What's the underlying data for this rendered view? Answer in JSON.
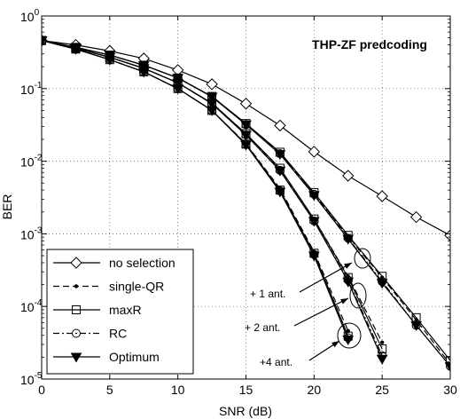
{
  "chart_data": {
    "type": "line",
    "title": "THP-ZF predcoding",
    "xlabel": "SNR (dB)",
    "ylabel": "BER",
    "xlim": [
      0,
      30
    ],
    "ylim": [
      1e-05,
      1
    ],
    "yscale": "log",
    "grid": true,
    "legend_position": "bottom-left",
    "xticks": [
      "0",
      "5",
      "10",
      "15",
      "20",
      "25",
      "30"
    ],
    "yticks": [
      {
        "value": 1,
        "exp": "0"
      },
      {
        "value": 0.1,
        "exp": "-1"
      },
      {
        "value": 0.01,
        "exp": "-2"
      },
      {
        "value": 0.001,
        "exp": "-3"
      },
      {
        "value": 0.0001,
        "exp": "-4"
      },
      {
        "value": 1e-05,
        "exp": "-5"
      }
    ],
    "ytick_base": "10",
    "legend": [
      "no selection",
      "single-QR",
      "maxR",
      "RC",
      "Optimum"
    ],
    "annotations": [
      "+ 1 ant.",
      "+ 2 ant.",
      "+4 ant."
    ],
    "groups": [
      {
        "label": "no selection",
        "curves": [
          {
            "marker": "diamond",
            "dash": "solid",
            "x": [
              0,
              2.5,
              5,
              7.5,
              10,
              12.5,
              15,
              17.5,
              20,
              22.5,
              25,
              27.5,
              30
            ],
            "y": [
              0.46,
              0.4,
              0.33,
              0.26,
              0.18,
              0.115,
              0.062,
              0.031,
              0.0135,
              0.0063,
              0.0033,
              0.0017,
              0.00095
            ]
          }
        ]
      },
      {
        "label": "+ 1 ant.",
        "curves": [
          {
            "marker": "dot",
            "dash": "dashed",
            "x": [
              0,
              2.5,
              5,
              7.5,
              10,
              12.5,
              15,
              17.5,
              20,
              22.5,
              25,
              27.5,
              30
            ],
            "y": [
              0.46,
              0.37,
              0.29,
              0.21,
              0.14,
              0.078,
              0.033,
              0.0132,
              0.0036,
              0.00092,
              0.00025,
              6.5e-05,
              1.6e-05
            ]
          },
          {
            "marker": "square",
            "dash": "solid",
            "x": [
              0,
              2.5,
              5,
              7.5,
              10,
              12.5,
              15,
              17.5,
              20,
              22.5,
              25,
              27.5,
              30
            ],
            "y": [
              0.46,
              0.37,
              0.29,
              0.21,
              0.14,
              0.078,
              0.033,
              0.0133,
              0.0037,
              0.00095,
              0.00026,
              7e-05,
              1.8e-05
            ]
          },
          {
            "marker": "circle",
            "dash": "dashdot",
            "x": [
              0,
              2.5,
              5,
              7.5,
              10,
              12.5,
              15,
              17.5,
              20,
              22.5,
              25,
              27.5,
              30
            ],
            "y": [
              0.46,
              0.37,
              0.29,
              0.21,
              0.14,
              0.078,
              0.032,
              0.0127,
              0.0035,
              0.00087,
              0.00022,
              5.5e-05,
              1.5e-05
            ]
          },
          {
            "marker": "triangle",
            "dash": "solid",
            "x": [
              0,
              2.5,
              5,
              7.5,
              10,
              12.5,
              15,
              17.5,
              20,
              22.5,
              25,
              27.5,
              30
            ],
            "y": [
              0.46,
              0.37,
              0.29,
              0.21,
              0.14,
              0.077,
              0.032,
              0.0125,
              0.0034,
              0.00085,
              0.00021,
              5.5e-05,
              1.5e-05
            ]
          }
        ]
      },
      {
        "label": "+ 2 ant.",
        "curves": [
          {
            "marker": "dot",
            "dash": "dashed",
            "x": [
              0,
              2.5,
              5,
              7.5,
              10,
              12.5,
              15,
              17.5,
              20,
              22.5,
              25
            ],
            "y": [
              0.46,
              0.36,
              0.27,
              0.19,
              0.12,
              0.063,
              0.024,
              0.0079,
              0.0016,
              0.00026,
              3.2e-05
            ]
          },
          {
            "marker": "square",
            "dash": "solid",
            "x": [
              0,
              2.5,
              5,
              7.5,
              10,
              12.5,
              15,
              17.5,
              20,
              22.5,
              25
            ],
            "y": [
              0.46,
              0.36,
              0.27,
              0.19,
              0.12,
              0.063,
              0.024,
              0.008,
              0.0016,
              0.00025,
              2.6e-05
            ]
          },
          {
            "marker": "circle",
            "dash": "dashdot",
            "x": [
              0,
              2.5,
              5,
              7.5,
              10,
              12.5,
              15,
              17.5,
              20,
              22.5,
              25
            ],
            "y": [
              0.46,
              0.36,
              0.27,
              0.19,
              0.12,
              0.062,
              0.023,
              0.0075,
              0.0015,
              0.00023,
              2.1e-05
            ]
          },
          {
            "marker": "triangle",
            "dash": "solid",
            "x": [
              0,
              2.5,
              5,
              7.5,
              10,
              12.5,
              15,
              17.5,
              20,
              22.5,
              25
            ],
            "y": [
              0.46,
              0.36,
              0.27,
              0.19,
              0.12,
              0.062,
              0.023,
              0.0074,
              0.0015,
              0.00022,
              1.9e-05
            ]
          }
        ]
      },
      {
        "label": "+4 ant.",
        "curves": [
          {
            "marker": "dot",
            "dash": "dashed",
            "x": [
              0,
              2.5,
              5,
              7.5,
              10,
              12.5,
              15,
              17.5,
              20,
              22.5
            ],
            "y": [
              0.46,
              0.35,
              0.25,
              0.17,
              0.1,
              0.05,
              0.0175,
              0.0042,
              0.00057,
              4.6e-05
            ]
          },
          {
            "marker": "square",
            "dash": "solid",
            "x": [
              0,
              2.5,
              5,
              7.5,
              10,
              12.5,
              15,
              17.5,
              20,
              22.5
            ],
            "y": [
              0.46,
              0.35,
              0.25,
              0.17,
              0.1,
              0.05,
              0.0172,
              0.004,
              0.00054,
              3.9e-05
            ]
          },
          {
            "marker": "circle",
            "dash": "dashdot",
            "x": [
              0,
              2.5,
              5,
              7.5,
              10,
              12.5,
              15,
              17.5,
              20,
              22.5
            ],
            "y": [
              0.46,
              0.35,
              0.25,
              0.17,
              0.1,
              0.05,
              0.017,
              0.0039,
              0.00052,
              3.7e-05
            ]
          },
          {
            "marker": "triangle",
            "dash": "solid",
            "x": [
              0,
              2.5,
              5,
              7.5,
              10,
              12.5,
              15,
              17.5,
              20,
              22.5
            ],
            "y": [
              0.46,
              0.35,
              0.25,
              0.17,
              0.1,
              0.05,
              0.0168,
              0.0038,
              0.0005,
              3.5e-05
            ]
          }
        ]
      }
    ]
  }
}
